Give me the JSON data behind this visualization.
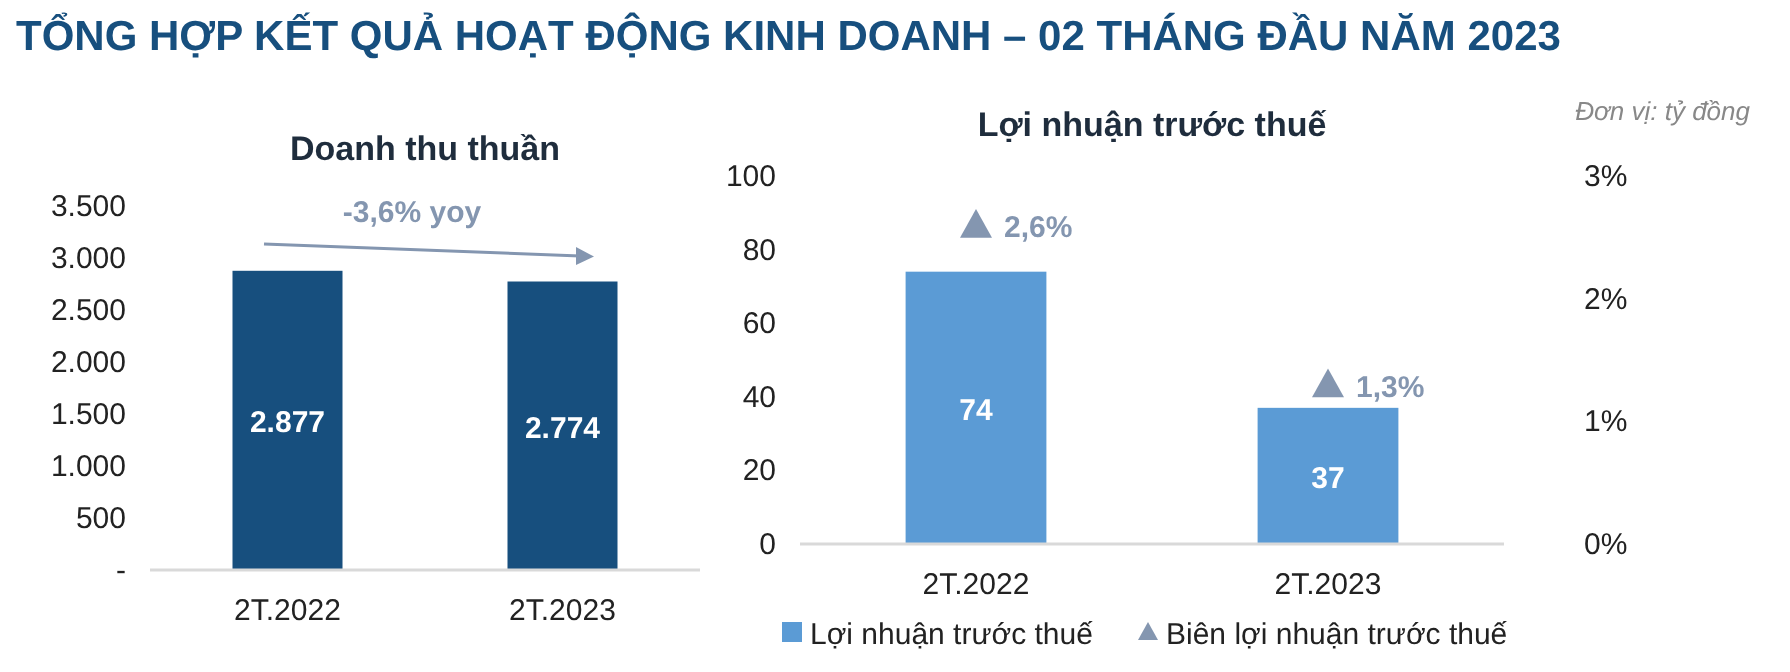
{
  "chart_data": [
    {
      "type": "bar",
      "title": "TỔNG HỢP KẾT QUẢ HOẠT ĐỘNG KINH DOANH – 02 THÁNG ĐẦU NĂM 2023",
      "subtitle": "Doanh thu thuần",
      "categories": [
        "2T.2022",
        "2T.2023"
      ],
      "values": [
        2877,
        2774
      ],
      "color": "#174f7e",
      "value_labels": [
        "2.877",
        "2.774"
      ],
      "ylim": [
        0,
        3500
      ],
      "yticks": [
        {
          "value": 0,
          "label": "-"
        },
        500,
        {
          "value": 1000,
          "label": "1.000"
        },
        {
          "value": 1500,
          "label": "1.500"
        },
        {
          "value": 2000,
          "label": "2.000"
        },
        {
          "value": 2500,
          "label": "2.500"
        },
        {
          "value": 3000,
          "label": "3.000"
        },
        {
          "value": 3500,
          "label": "3.500"
        }
      ],
      "annotations": [
        "-3,6% yoy"
      ],
      "grid": false
    },
    {
      "type": "bar",
      "title": "Lợi nhuận trước thuế",
      "categories": [
        "2T.2022",
        "2T.2023"
      ],
      "series": [
        {
          "name": "Lợi nhuận trước thuế",
          "color": "#5b9bd5",
          "values": [
            74,
            37
          ],
          "value_labels": [
            "74",
            "37"
          ]
        },
        {
          "name": "Biên lợi nhuận trước thuế",
          "type": "scatter",
          "axis": "y2",
          "color": "#8496b0",
          "values": [
            2.6,
            1.3
          ],
          "value_labels": [
            "2,6%",
            "1,3%"
          ],
          "marker": "triangle"
        }
      ],
      "ylim": [
        0,
        100
      ],
      "yticks": [
        0,
        20,
        40,
        60,
        80,
        100
      ],
      "y2lim": [
        0,
        3
      ],
      "y2ticks": [
        {
          "value": 0,
          "label": "0%"
        },
        {
          "value": 1,
          "label": "1%"
        },
        {
          "value": 2,
          "label": "2%"
        },
        {
          "value": 3,
          "label": "3%"
        }
      ],
      "legend": "bottom",
      "grid": false,
      "annotations": [
        "Đơn vị: tỷ đồng"
      ]
    }
  ]
}
